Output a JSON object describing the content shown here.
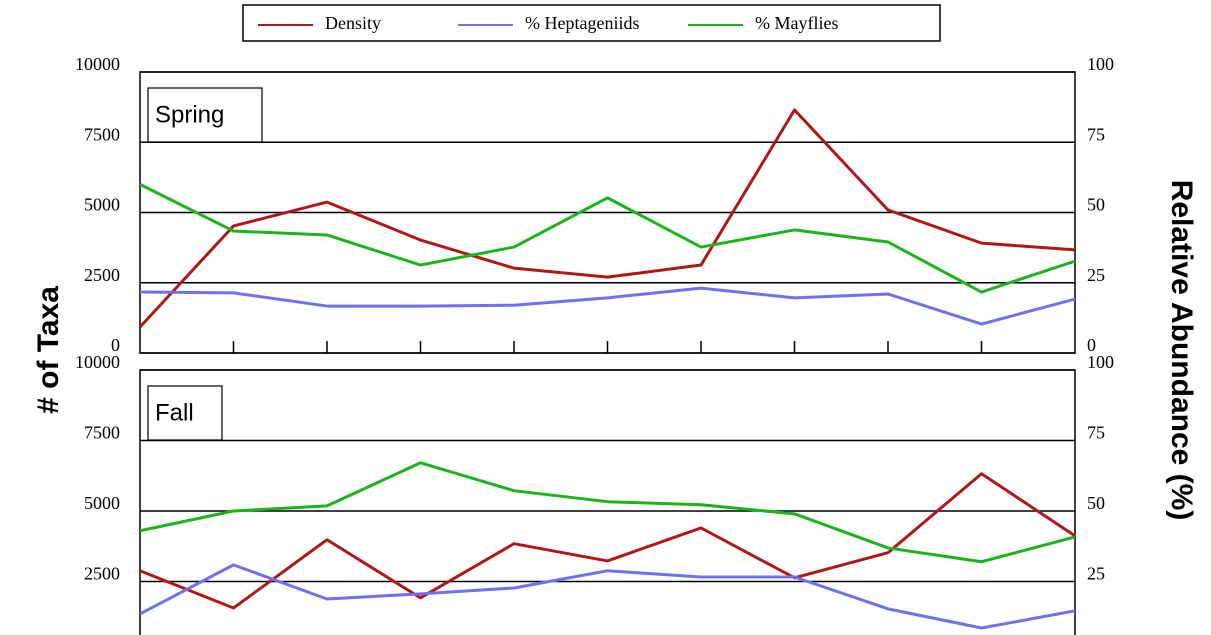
{
  "chart_data": [
    {
      "type": "line",
      "title": "Spring",
      "y_label": "# of Taxa",
      "y2_label": "Relative Abundance (%)",
      "categories": [
        null,
        null,
        null,
        null,
        null,
        null,
        null,
        null,
        null,
        null,
        null
      ],
      "ylim": [
        0,
        10000
      ],
      "yticks": [
        0,
        2500,
        5000,
        7500,
        10000
      ],
      "y2lim": [
        0,
        100
      ],
      "y2ticks": [
        0,
        25,
        50,
        75,
        100
      ],
      "grid": true,
      "legend": "top",
      "series": [
        {
          "name": "Density",
          "color": "#b01818",
          "values": [
            925,
            4520,
            5370,
            4020,
            3020,
            2700,
            3130,
            8650,
            5090,
            3910,
            3670
          ]
        },
        {
          "name": "% Heptageniids",
          "color": "#7070f0",
          "axis": "y2",
          "values": [
            21.7,
            21.4,
            16.7,
            16.7,
            17,
            19.6,
            23.1,
            19.6,
            21,
            10.3,
            19.2
          ]
        },
        {
          "name": "% Mayflies",
          "color": "#1cb41c",
          "axis": "y2",
          "values": [
            60,
            43.4,
            42,
            31.3,
            37.7,
            55.2,
            37.7,
            43.8,
            39.5,
            21.7,
            32.7
          ]
        }
      ]
    },
    {
      "type": "line",
      "title": "Fall",
      "categories": [
        null,
        null,
        null,
        null,
        null,
        null,
        null,
        null,
        null,
        null,
        null
      ],
      "ylim": [
        0,
        10000
      ],
      "yticks": [
        2500,
        5000,
        7500,
        10000
      ],
      "y2lim": [
        0,
        100
      ],
      "y2ticks": [
        25,
        50,
        75,
        100
      ],
      "grid": true,
      "series": [
        {
          "color": "#b01818",
          "values": [
            2880,
            1560,
            3980,
            1920,
            3840,
            3230,
            4400,
            2630,
            3520,
            6320,
            4120
          ]
        },
        {
          "color": "#7070f0",
          "axis": "y2",
          "values": [
            13.5,
            30.9,
            18.8,
            20.6,
            22.7,
            28.8,
            26.6,
            26.6,
            15.3,
            8.5,
            14.6
          ]
        },
        {
          "color": "#1cb41c",
          "axis": "y2",
          "values": [
            43,
            50,
            51.8,
            67.1,
            57.2,
            53.3,
            52.2,
            49,
            36.9,
            32,
            40.8
          ]
        }
      ]
    }
  ]
}
